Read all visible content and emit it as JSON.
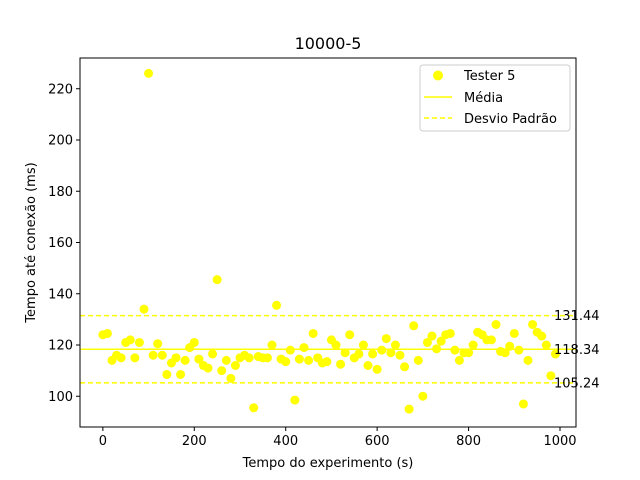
{
  "chart_data": {
    "type": "scatter",
    "title": "10000-5",
    "xlabel": "Tempo do experimento (s)",
    "ylabel": "Tempo até conexão (ms)",
    "xlim": [
      -50,
      1035
    ],
    "ylim": [
      88,
      232
    ],
    "xticks": [
      0,
      200,
      400,
      600,
      800,
      1000
    ],
    "yticks": [
      100,
      120,
      140,
      160,
      180,
      200,
      220
    ],
    "grid": false,
    "legend_position": "top-right",
    "colors": {
      "points": "#ffff00",
      "mean": "#ffff00",
      "std": "#ffff00",
      "axes": "#000000"
    },
    "series": [
      {
        "name": "Tester 5",
        "points": [
          [
            0,
            124
          ],
          [
            10,
            124.5
          ],
          [
            20,
            114
          ],
          [
            30,
            116
          ],
          [
            40,
            115
          ],
          [
            50,
            121
          ],
          [
            60,
            122
          ],
          [
            70,
            115
          ],
          [
            80,
            121
          ],
          [
            90,
            134
          ],
          [
            100,
            226
          ],
          [
            110,
            116
          ],
          [
            120,
            120.5
          ],
          [
            130,
            116
          ],
          [
            140,
            108.5
          ],
          [
            150,
            113
          ],
          [
            160,
            115
          ],
          [
            170,
            108.5
          ],
          [
            180,
            114
          ],
          [
            190,
            119
          ],
          [
            200,
            121
          ],
          [
            210,
            114.5
          ],
          [
            220,
            112
          ],
          [
            230,
            111
          ],
          [
            240,
            116.5
          ],
          [
            250,
            145.5
          ],
          [
            260,
            110
          ],
          [
            270,
            114
          ],
          [
            280,
            107
          ],
          [
            290,
            112
          ],
          [
            300,
            115
          ],
          [
            310,
            116
          ],
          [
            320,
            115
          ],
          [
            330,
            95.5
          ],
          [
            340,
            115.5
          ],
          [
            350,
            115
          ],
          [
            360,
            115
          ],
          [
            370,
            120
          ],
          [
            380,
            135.5
          ],
          [
            390,
            114.5
          ],
          [
            400,
            113.5
          ],
          [
            410,
            118
          ],
          [
            420,
            98.5
          ],
          [
            430,
            114.5
          ],
          [
            440,
            119
          ],
          [
            450,
            114
          ],
          [
            460,
            124.5
          ],
          [
            470,
            115
          ],
          [
            480,
            113
          ],
          [
            490,
            113.5
          ],
          [
            500,
            122
          ],
          [
            510,
            120
          ],
          [
            520,
            112.5
          ],
          [
            530,
            117
          ],
          [
            540,
            124
          ],
          [
            550,
            115
          ],
          [
            560,
            116.5
          ],
          [
            570,
            120
          ],
          [
            580,
            112
          ],
          [
            590,
            116.5
          ],
          [
            600,
            110.5
          ],
          [
            610,
            118
          ],
          [
            620,
            122.5
          ],
          [
            630,
            117
          ],
          [
            640,
            120
          ],
          [
            650,
            116
          ],
          [
            660,
            111.5
          ],
          [
            670,
            95
          ],
          [
            680,
            127.5
          ],
          [
            690,
            114
          ],
          [
            700,
            100
          ],
          [
            710,
            121
          ],
          [
            720,
            123.5
          ],
          [
            730,
            118.5
          ],
          [
            740,
            121.5
          ],
          [
            750,
            124
          ],
          [
            760,
            124.5
          ],
          [
            770,
            118
          ],
          [
            780,
            114
          ],
          [
            790,
            117
          ],
          [
            800,
            117
          ],
          [
            810,
            120
          ],
          [
            820,
            125
          ],
          [
            830,
            124
          ],
          [
            840,
            122
          ],
          [
            850,
            122
          ],
          [
            860,
            128
          ],
          [
            870,
            117.5
          ],
          [
            880,
            117
          ],
          [
            890,
            119.5
          ],
          [
            900,
            124.5
          ],
          [
            910,
            118
          ],
          [
            920,
            97
          ],
          [
            930,
            114
          ],
          [
            940,
            128
          ],
          [
            950,
            125
          ],
          [
            960,
            123.5
          ],
          [
            970,
            120
          ],
          [
            980,
            108
          ],
          [
            990,
            116.5
          ]
        ]
      }
    ],
    "mean": {
      "name": "Média",
      "value": 118.34,
      "label": "118.34"
    },
    "std_lines": {
      "name": "Desvio Padrão",
      "upper": 131.44,
      "upper_label": "131.44",
      "lower": 105.24,
      "lower_label": "105.24"
    }
  }
}
